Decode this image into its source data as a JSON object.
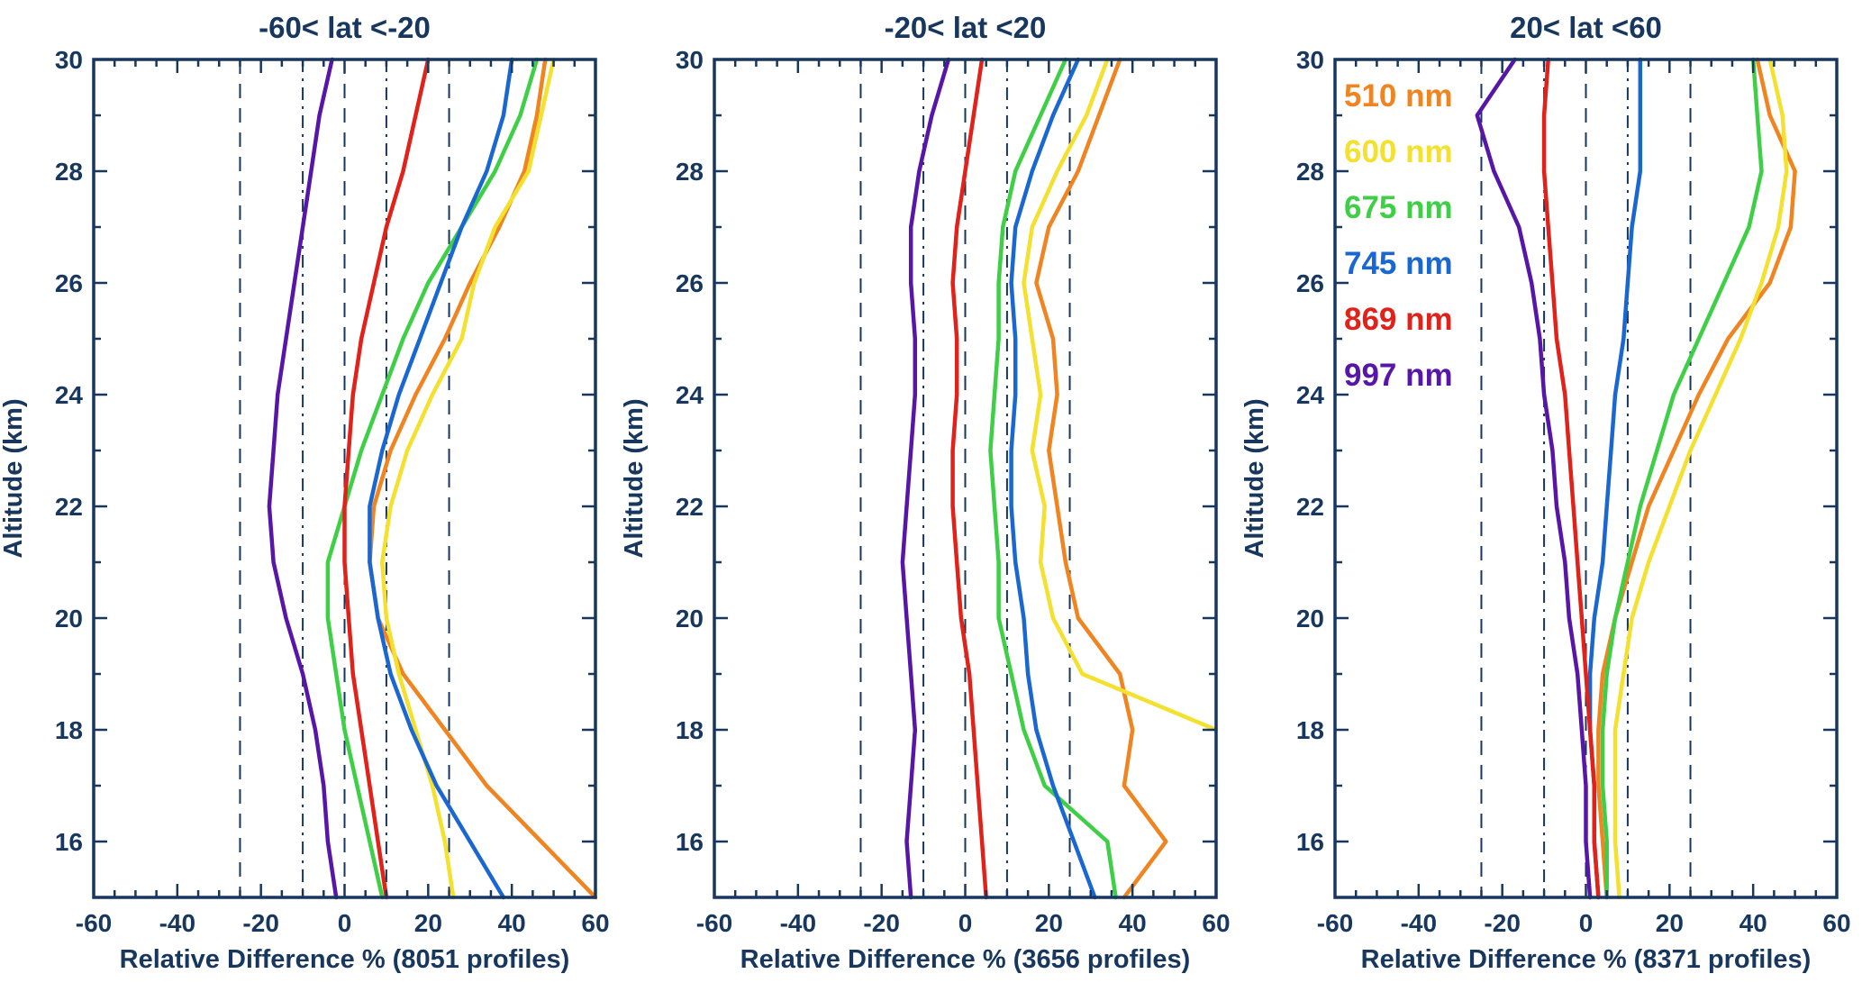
{
  "figure": {
    "background": "#ffffff",
    "axis_color": "#17375e",
    "text_color": "#17375e"
  },
  "legend": {
    "position": "top-left-inside-third-panel",
    "entries": [
      {
        "label": "510 nm",
        "color": "#ef8421"
      },
      {
        "label": "600 nm",
        "color": "#f4e02e"
      },
      {
        "label": "675 nm",
        "color": "#3ecf46"
      },
      {
        "label": "745 nm",
        "color": "#1a67d2"
      },
      {
        "label": "869 nm",
        "color": "#e0221a"
      },
      {
        "label": "997 nm",
        "color": "#5716a8"
      }
    ]
  },
  "chart_data": [
    {
      "type": "line",
      "title": "-60< lat <-20",
      "xlabel": "Relative Difference % (8051 profiles)",
      "ylabel": "Altitude (km)",
      "profiles": 8051,
      "xlim": [
        -60,
        60
      ],
      "ylim": [
        15,
        30
      ],
      "xticks": [
        -60,
        -40,
        -20,
        0,
        20,
        40,
        60
      ],
      "yticks": [
        16,
        18,
        20,
        22,
        24,
        26,
        28,
        30
      ],
      "grid": false,
      "reference_lines": [
        {
          "x": -25,
          "style": "dashed"
        },
        {
          "x": -10,
          "style": "dashdot"
        },
        {
          "x": 0,
          "style": "dashed"
        },
        {
          "x": 10,
          "style": "dashdot"
        },
        {
          "x": 25,
          "style": "dashed"
        }
      ],
      "altitudes": [
        15,
        16,
        17,
        18,
        19,
        20,
        21,
        22,
        23,
        24,
        25,
        26,
        27,
        28,
        29,
        30
      ],
      "series": [
        {
          "name": "510 nm",
          "color": "#ef8421",
          "values": [
            60,
            47,
            34,
            24,
            14,
            8,
            6,
            7,
            11,
            17,
            24,
            30,
            37,
            43,
            46,
            48
          ]
        },
        {
          "name": "600 nm",
          "color": "#f4e02e",
          "values": [
            26,
            24,
            21,
            17,
            13,
            10,
            9,
            11,
            15,
            21,
            28,
            31,
            36,
            44,
            47,
            50
          ]
        },
        {
          "name": "675 nm",
          "color": "#3ecf46",
          "values": [
            9,
            6,
            3,
            0,
            -2,
            -4,
            -4,
            0,
            4,
            9,
            14,
            20,
            28,
            36,
            42,
            46
          ]
        },
        {
          "name": "745 nm",
          "color": "#1a67d2",
          "values": [
            38,
            30,
            22,
            16,
            11,
            8,
            6,
            6,
            9,
            13,
            18,
            23,
            28,
            34,
            38,
            40
          ]
        },
        {
          "name": "869 nm",
          "color": "#e0221a",
          "values": [
            10,
            8,
            6,
            4,
            2,
            1,
            0,
            0,
            1,
            2,
            4,
            7,
            10,
            14,
            17,
            20
          ]
        },
        {
          "name": "997 nm",
          "color": "#5716a8",
          "values": [
            -2,
            -4,
            -5,
            -7,
            -10,
            -14,
            -17,
            -18,
            -17,
            -16,
            -14,
            -12,
            -10,
            -8,
            -6,
            -3
          ]
        }
      ]
    },
    {
      "type": "line",
      "title": "-20< lat <20",
      "xlabel": "Relative Difference % (3656 profiles)",
      "ylabel": "Altitude (km)",
      "profiles": 3656,
      "xlim": [
        -60,
        60
      ],
      "ylim": [
        15,
        30
      ],
      "xticks": [
        -60,
        -40,
        -20,
        0,
        20,
        40,
        60
      ],
      "yticks": [
        16,
        18,
        20,
        22,
        24,
        26,
        28,
        30
      ],
      "grid": false,
      "reference_lines": [
        {
          "x": -25,
          "style": "dashed"
        },
        {
          "x": -10,
          "style": "dashdot"
        },
        {
          "x": 0,
          "style": "dashed"
        },
        {
          "x": 10,
          "style": "dashdot"
        },
        {
          "x": 25,
          "style": "dashed"
        }
      ],
      "altitudes": [
        15,
        16,
        17,
        18,
        19,
        20,
        21,
        22,
        23,
        24,
        25,
        26,
        27,
        28,
        29,
        30
      ],
      "series": [
        {
          "name": "510 nm",
          "color": "#ef8421",
          "values": [
            38,
            48,
            38,
            40,
            37,
            27,
            24,
            22,
            20,
            22,
            21,
            17,
            20,
            27,
            32,
            37
          ]
        },
        {
          "name": "600 nm",
          "color": "#f4e02e",
          "values": [
            null,
            null,
            null,
            60,
            28,
            21,
            18,
            19,
            16,
            18,
            16,
            14,
            16,
            22,
            29,
            34
          ]
        },
        {
          "name": "675 nm",
          "color": "#3ecf46",
          "values": [
            36,
            34,
            19,
            14,
            11,
            8,
            8,
            7,
            6,
            7,
            8,
            8,
            9,
            12,
            18,
            24
          ]
        },
        {
          "name": "745 nm",
          "color": "#1a67d2",
          "values": [
            31,
            26,
            21,
            17,
            15,
            14,
            12,
            11,
            11,
            12,
            12,
            11,
            12,
            16,
            21,
            27
          ]
        },
        {
          "name": "869 nm",
          "color": "#e0221a",
          "values": [
            5,
            4,
            3,
            2,
            1,
            -1,
            -2,
            -3,
            -3,
            -2,
            -2,
            -3,
            -2,
            0,
            2,
            4
          ]
        },
        {
          "name": "997 nm",
          "color": "#5716a8",
          "values": [
            -13,
            -14,
            -13,
            -12,
            -13,
            -14,
            -15,
            -14,
            -13,
            -12,
            -12,
            -13,
            -13,
            -11,
            -8,
            -4
          ]
        }
      ]
    },
    {
      "type": "line",
      "title": "20< lat <60",
      "xlabel": "Relative Difference % (8371 profiles)",
      "ylabel": "Altitude (km)",
      "profiles": 8371,
      "xlim": [
        -60,
        60
      ],
      "ylim": [
        15,
        30
      ],
      "xticks": [
        -60,
        -40,
        -20,
        0,
        20,
        40,
        60
      ],
      "yticks": [
        16,
        18,
        20,
        22,
        24,
        26,
        28,
        30
      ],
      "grid": false,
      "reference_lines": [
        {
          "x": -25,
          "style": "dashed"
        },
        {
          "x": -10,
          "style": "dashdot"
        },
        {
          "x": 0,
          "style": "dashed"
        },
        {
          "x": 10,
          "style": "dashdot"
        },
        {
          "x": 25,
          "style": "dashed"
        }
      ],
      "altitudes": [
        15,
        16,
        17,
        18,
        19,
        20,
        21,
        22,
        23,
        24,
        25,
        26,
        27,
        28,
        29,
        30
      ],
      "series": [
        {
          "name": "510 nm",
          "color": "#ef8421",
          "values": [
            5,
            4,
            3,
            3,
            4,
            7,
            11,
            15,
            21,
            27,
            34,
            44,
            49,
            50,
            44,
            41
          ]
        },
        {
          "name": "600 nm",
          "color": "#f4e02e",
          "values": [
            8,
            7,
            7,
            7,
            9,
            11,
            15,
            20,
            25,
            31,
            37,
            42,
            46,
            48,
            47,
            44
          ]
        },
        {
          "name": "675 nm",
          "color": "#3ecf46",
          "values": [
            5,
            5,
            4,
            4,
            5,
            7,
            10,
            13,
            17,
            21,
            27,
            33,
            39,
            42,
            41,
            40
          ]
        },
        {
          "name": "745 nm",
          "color": "#1a67d2",
          "values": [
            3,
            2,
            2,
            1,
            1,
            2,
            4,
            5,
            6,
            7,
            9,
            10,
            11,
            13,
            13,
            13
          ]
        },
        {
          "name": "869 nm",
          "color": "#e0221a",
          "values": [
            3,
            2,
            2,
            1,
            0,
            -1,
            -2,
            -3,
            -4,
            -5,
            -7,
            -8,
            -9,
            -10,
            -10,
            -9
          ]
        },
        {
          "name": "997 nm",
          "color": "#5716a8",
          "values": [
            1,
            0,
            0,
            -1,
            -2,
            -4,
            -5,
            -7,
            -8,
            -10,
            -11,
            -13,
            -16,
            -22,
            -26,
            -17
          ]
        }
      ]
    }
  ]
}
